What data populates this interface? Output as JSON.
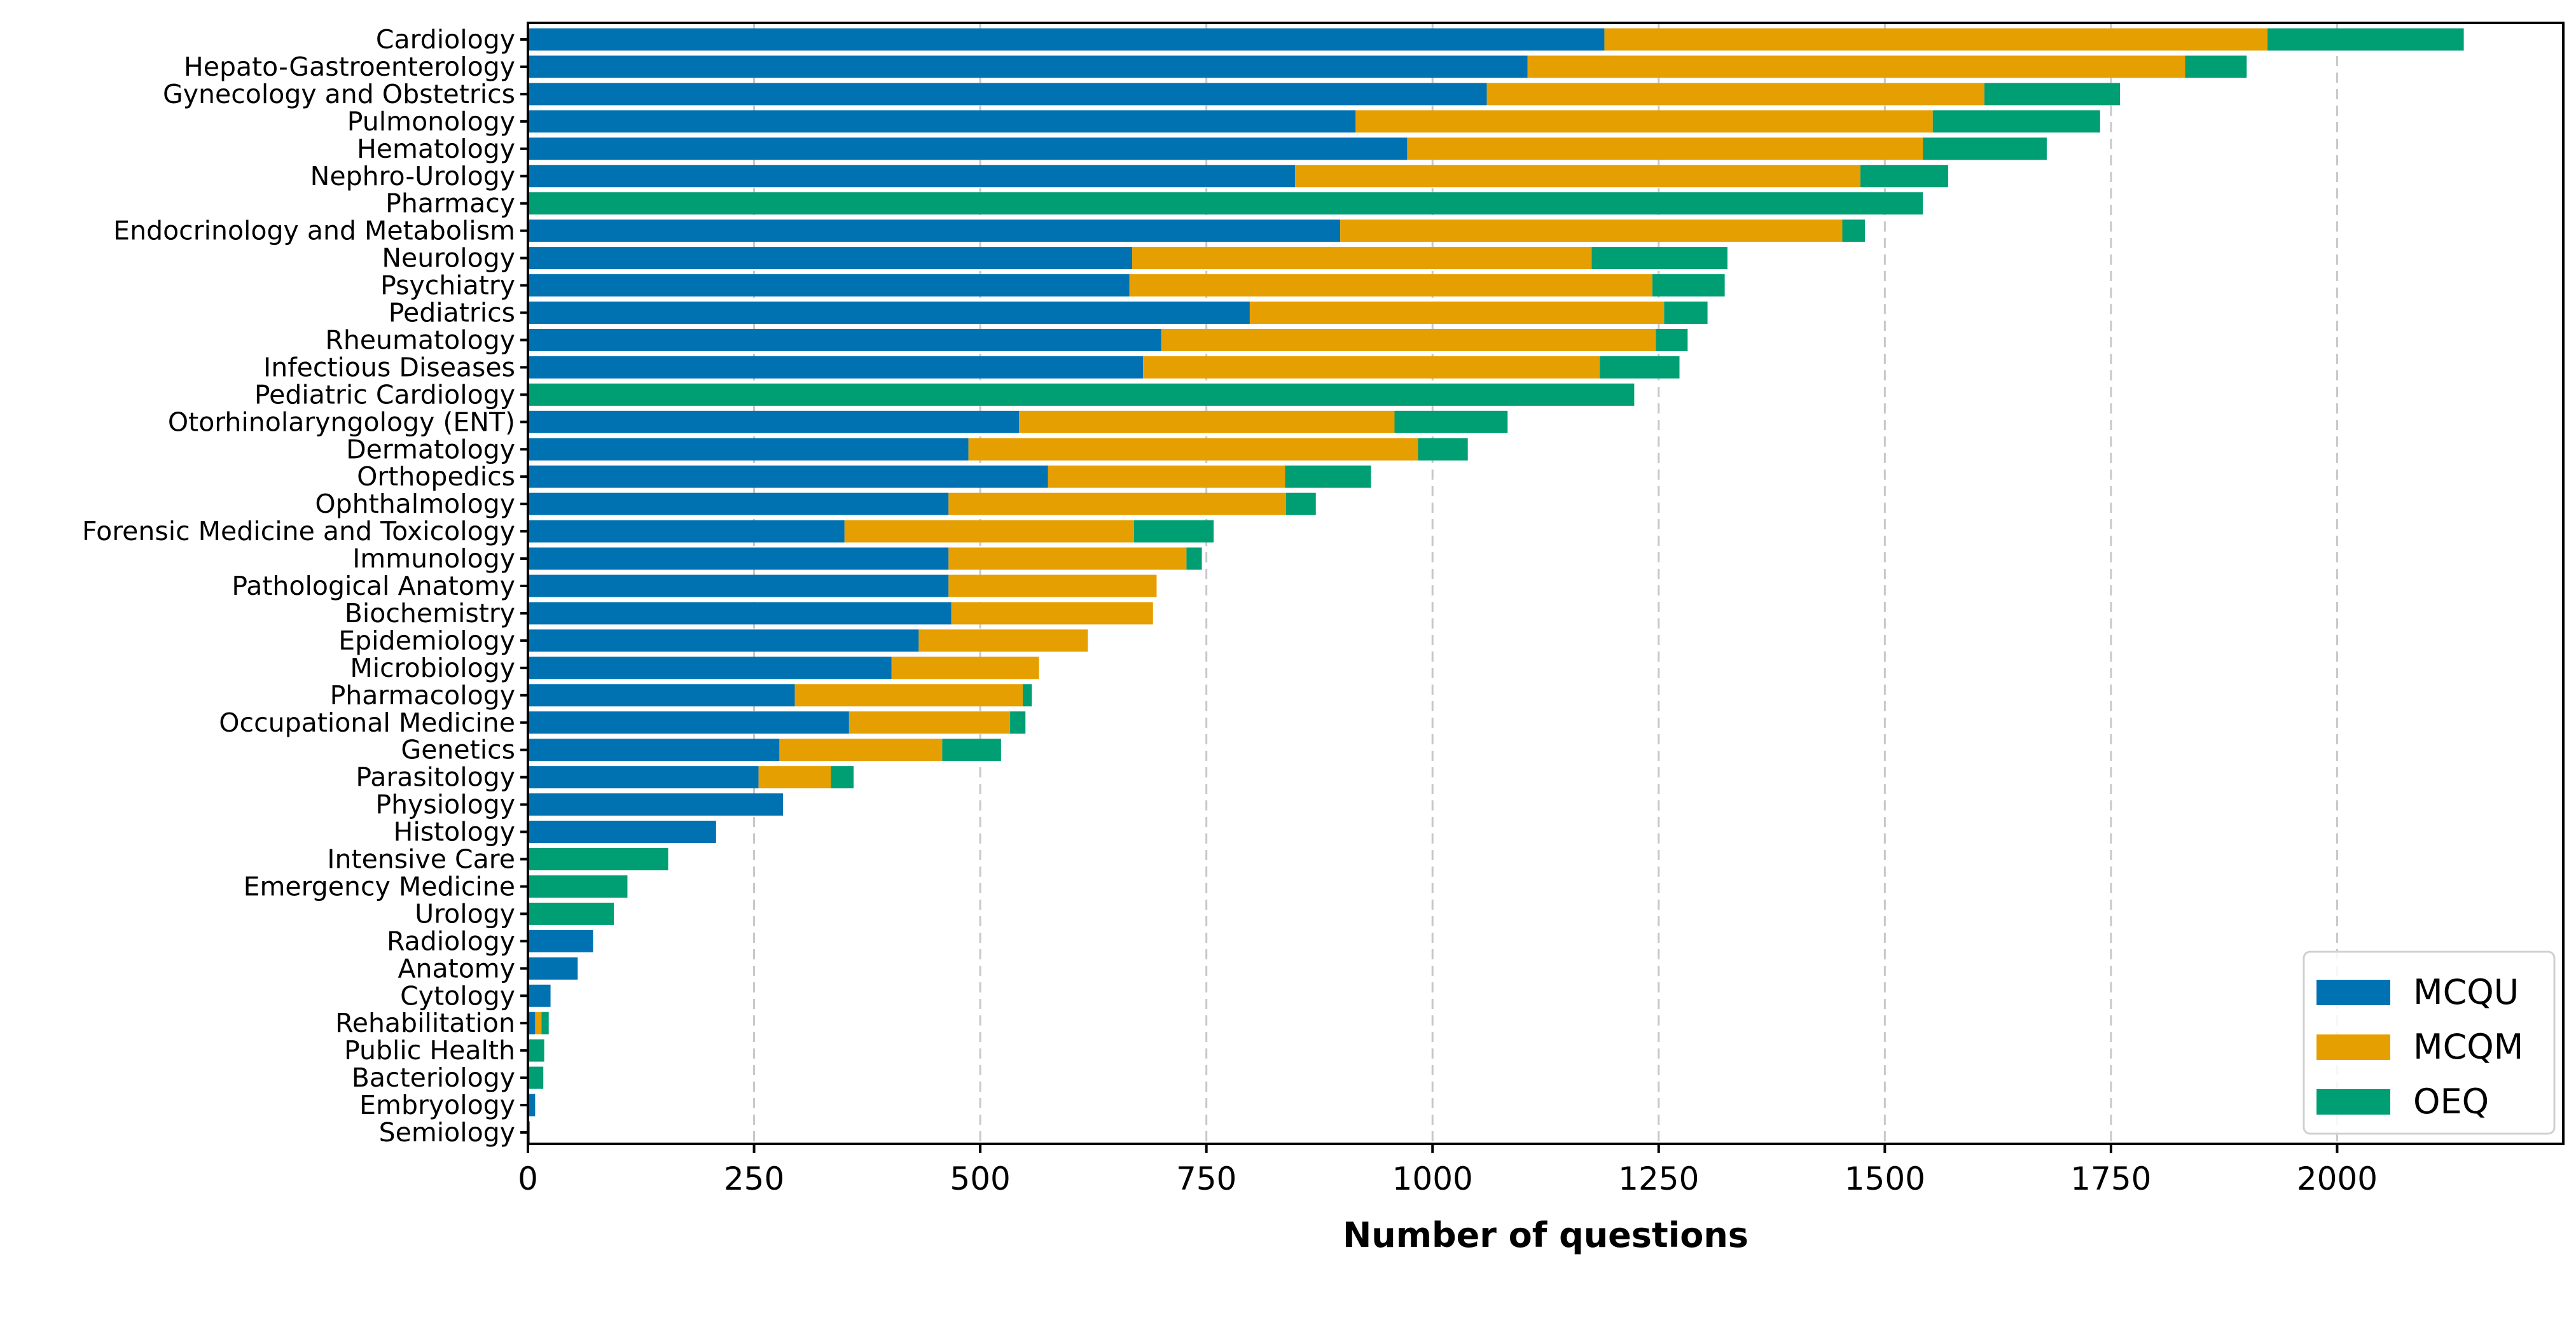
{
  "chart_data": {
    "type": "bar",
    "orientation": "horizontal",
    "stacked": true,
    "title": "",
    "xlabel": "Number of questions",
    "ylabel": "",
    "xlim": [
      0,
      2250
    ],
    "xticks": [
      0,
      250,
      500,
      750,
      1000,
      1250,
      1500,
      1750,
      2000
    ],
    "grid": "x-dashed",
    "legend_position": "lower-right",
    "categories": [
      "Cardiology",
      "Hepato-Gastroenterology",
      "Gynecology and Obstetrics",
      "Pulmonology",
      "Hematology",
      "Nephro-Urology",
      "Pharmacy",
      "Endocrinology and Metabolism",
      "Neurology",
      "Psychiatry",
      "Pediatrics",
      "Rheumatology",
      "Infectious Diseases",
      "Pediatric Cardiology",
      "Otorhinolaryngology (ENT)",
      "Dermatology",
      "Orthopedics",
      "Ophthalmology",
      "Forensic Medicine and Toxicology",
      "Immunology",
      "Pathological Anatomy",
      "Biochemistry",
      "Epidemiology",
      "Microbiology",
      "Pharmacology",
      "Occupational Medicine",
      "Genetics",
      "Parasitology",
      "Physiology",
      "Histology",
      "Intensive Care",
      "Emergency Medicine",
      "Urology",
      "Radiology",
      "Anatomy",
      "Cytology",
      "Rehabilitation",
      "Public Health",
      "Bacteriology",
      "Embryology",
      "Semiology"
    ],
    "series": [
      {
        "name": "MCQU",
        "color": "#0072b2",
        "values": [
          1190,
          1105,
          1060,
          915,
          972,
          848,
          0,
          898,
          668,
          665,
          798,
          700,
          680,
          0,
          543,
          487,
          575,
          465,
          350,
          465,
          465,
          468,
          432,
          402,
          295,
          355,
          278,
          255,
          282,
          208,
          0,
          0,
          0,
          72,
          55,
          25,
          8,
          0,
          0,
          8,
          2
        ]
      },
      {
        "name": "MCQM",
        "color": "#e69f00",
        "values": [
          733,
          727,
          550,
          638,
          570,
          625,
          0,
          555,
          508,
          578,
          458,
          547,
          505,
          0,
          415,
          497,
          262,
          373,
          320,
          263,
          230,
          223,
          187,
          163,
          252,
          178,
          180,
          80,
          0,
          0,
          0,
          0,
          0,
          0,
          0,
          0,
          7,
          0,
          0,
          0,
          0
        ]
      },
      {
        "name": "OEQ",
        "color": "#009e73",
        "values": [
          217,
          68,
          150,
          185,
          137,
          97,
          1542,
          25,
          150,
          80,
          48,
          35,
          88,
          1223,
          125,
          55,
          95,
          33,
          88,
          17,
          0,
          0,
          0,
          0,
          10,
          17,
          65,
          25,
          0,
          0,
          155,
          110,
          95,
          0,
          0,
          0,
          8,
          18,
          17,
          0,
          0
        ]
      }
    ]
  }
}
